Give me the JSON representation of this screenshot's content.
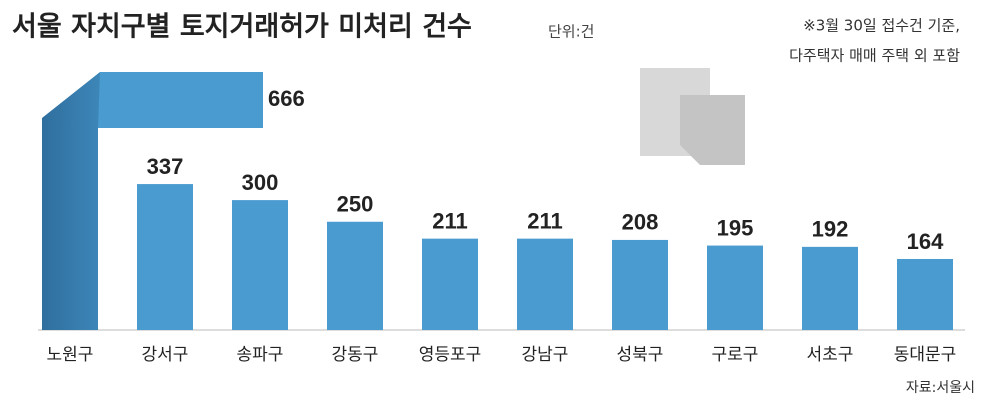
{
  "chart_data": {
    "type": "bar",
    "title": "서울 자치구별 토지거래허가 미처리 건수",
    "unit": "단위:건",
    "note": [
      "※3월 30일 접수건 기준,",
      "다주택자 매매 주택 외 포함"
    ],
    "source": "자료:서울시",
    "categories": [
      "노원구",
      "강서구",
      "송파구",
      "강동구",
      "영등포구",
      "강남구",
      "성북구",
      "구로구",
      "서초구",
      "동대문구"
    ],
    "values": [
      666,
      337,
      300,
      250,
      211,
      211,
      208,
      195,
      192,
      164
    ],
    "color": "#4a9bd0"
  }
}
